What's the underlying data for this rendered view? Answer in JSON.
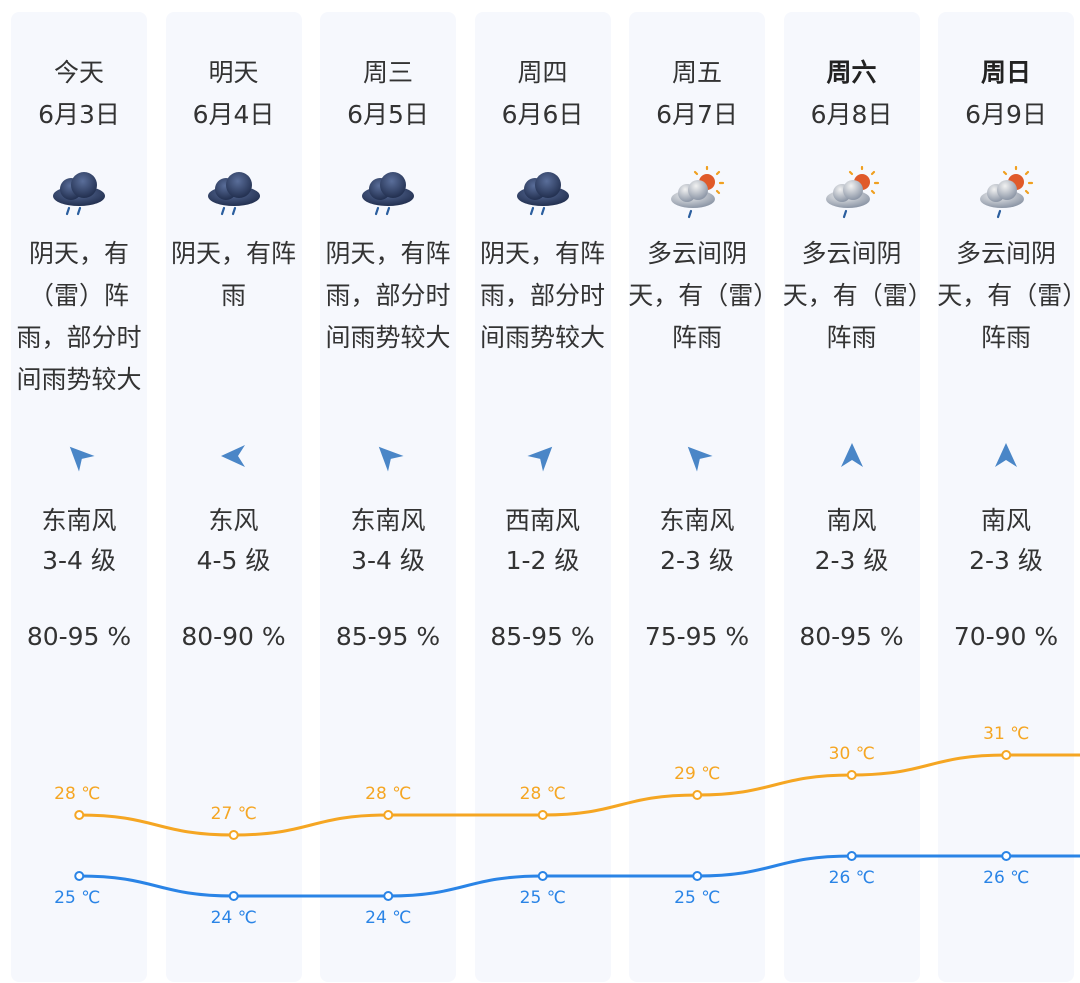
{
  "forecast": {
    "days": [
      {
        "day": "今天",
        "date": "6月3日",
        "bold": false,
        "weather_icon": "rain-cloud-icon",
        "desc": "阴天，有（雷）阵雨，部分时间雨势较大",
        "wind_dir": "东南风",
        "wind_level": "3-4 级",
        "wind_heading_deg": 315,
        "humidity": "80-95 %",
        "high": "28 ℃",
        "low": "25 ℃",
        "high_value": 28,
        "low_value": 25
      },
      {
        "day": "明天",
        "date": "6月4日",
        "bold": false,
        "weather_icon": "rain-cloud-icon",
        "desc": "阴天，有阵雨",
        "wind_dir": "东风",
        "wind_level": "4-5 级",
        "wind_heading_deg": 270,
        "humidity": "80-90 %",
        "high": "27 ℃",
        "low": "24 ℃",
        "high_value": 27,
        "low_value": 24
      },
      {
        "day": "周三",
        "date": "6月5日",
        "bold": false,
        "weather_icon": "rain-cloud-icon",
        "desc": "阴天，有阵雨，部分时间雨势较大",
        "wind_dir": "东南风",
        "wind_level": "3-4 级",
        "wind_heading_deg": 315,
        "humidity": "85-95 %",
        "high": "28 ℃",
        "low": "24 ℃",
        "high_value": 28,
        "low_value": 24
      },
      {
        "day": "周四",
        "date": "6月6日",
        "bold": false,
        "weather_icon": "rain-cloud-icon",
        "desc": "阴天，有阵雨，部分时间雨势较大",
        "wind_dir": "西南风",
        "wind_level": "1-2 级",
        "wind_heading_deg": 45,
        "humidity": "85-95 %",
        "high": "28 ℃",
        "low": "25 ℃",
        "high_value": 28,
        "low_value": 25
      },
      {
        "day": "周五",
        "date": "6月7日",
        "bold": false,
        "weather_icon": "sun-cloud-rain-icon",
        "desc": "多云间阴天，有（雷）阵雨",
        "wind_dir": "东南风",
        "wind_level": "2-3 级",
        "wind_heading_deg": 315,
        "humidity": "75-95 %",
        "high": "29 ℃",
        "low": "25 ℃",
        "high_value": 29,
        "low_value": 25
      },
      {
        "day": "周六",
        "date": "6月8日",
        "bold": true,
        "weather_icon": "sun-cloud-rain-icon",
        "desc": "多云间阴天，有（雷）阵雨",
        "wind_dir": "南风",
        "wind_level": "2-3 级",
        "wind_heading_deg": 0,
        "humidity": "80-95 %",
        "high": "30 ℃",
        "low": "26 ℃",
        "high_value": 30,
        "low_value": 26
      },
      {
        "day": "周日",
        "date": "6月9日",
        "bold": true,
        "weather_icon": "sun-cloud-rain-icon",
        "desc": "多云间阴天，有（雷）阵雨",
        "wind_dir": "南风",
        "wind_level": "2-3 级",
        "wind_heading_deg": 0,
        "humidity": "70-90 %",
        "high": "31 ℃",
        "low": "26 ℃",
        "high_value": 31,
        "low_value": 26
      }
    ]
  },
  "colors": {
    "high_line": "#f5a623",
    "low_line": "#2a84e6",
    "wind_arrow": "#4a86c7",
    "card_bg": "#f6f8fd"
  },
  "chart_data": {
    "type": "line",
    "categories": [
      "6月3日",
      "6月4日",
      "6月5日",
      "6月6日",
      "6月7日",
      "6月8日",
      "6月9日"
    ],
    "series": [
      {
        "values": [
          28,
          27,
          28,
          28,
          29,
          30,
          31
        ]
      },
      {
        "values": [
          25,
          24,
          24,
          25,
          25,
          26,
          26
        ]
      }
    ],
    "unit": "℃"
  }
}
